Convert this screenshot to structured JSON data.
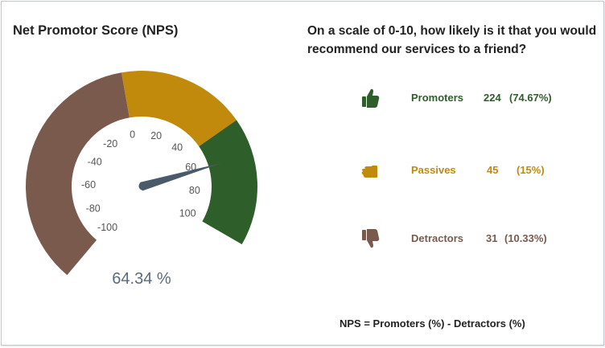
{
  "title": "Net Promotor Score (NPS)",
  "question": "On a scale of 0-10, how likely is it that you would recommend our services to a friend?",
  "colors": {
    "promoters": "#2e5e2a",
    "passives": "#c28a0c",
    "detractors": "#7b5a4e",
    "needle": "#4a5a6b",
    "tick_text": "#555555",
    "value_text": "#5b6b7b"
  },
  "chart_data": {
    "type": "gauge",
    "min": -100,
    "max": 100,
    "ticks": [
      -100,
      -80,
      -60,
      -40,
      -20,
      0,
      20,
      40,
      60,
      80,
      100
    ],
    "tick_labels": [
      "-100",
      "-80",
      "-60",
      "-40",
      "-20",
      "0",
      "20",
      "40",
      "60",
      "80",
      "100"
    ],
    "bands": [
      {
        "name": "Detractors",
        "from": -100,
        "to": 0,
        "color": "#7b5a4e"
      },
      {
        "name": "Passives",
        "from": 0,
        "to": 50,
        "color": "#c28a0c"
      },
      {
        "name": "Promoters",
        "from": 50,
        "to": 100,
        "color": "#2e5e2a"
      }
    ],
    "needle_value": 64.34,
    "value_label": "64.34 %"
  },
  "breakdown": [
    {
      "key": "promoters",
      "label": "Promoters",
      "count": "224",
      "pct": "(74.67%)",
      "icon": "thumbs-up-icon",
      "color": "#2e5e2a"
    },
    {
      "key": "passives",
      "label": "Passives",
      "count": "45",
      "pct": "(15%)",
      "icon": "thumbs-sideways-icon",
      "color": "#c28a0c"
    },
    {
      "key": "detractors",
      "label": "Detractors",
      "count": "31",
      "pct": "(10.33%)",
      "icon": "thumbs-down-icon",
      "color": "#7b5a4e"
    }
  ],
  "formula": "NPS = Promoters (%) - Detractors (%)"
}
